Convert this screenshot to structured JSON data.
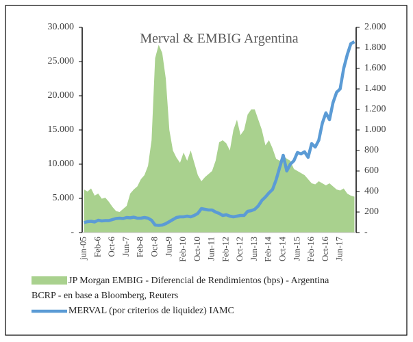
{
  "chart_data": {
    "type": "combo",
    "title": "Merval & EMBIG  Argentina",
    "source": "BCRP - en base a Bloomberg, Reuters",
    "categories": [
      "jun-05",
      null,
      null,
      null,
      "Feb-6",
      null,
      null,
      null,
      "Oct-6",
      null,
      null,
      null,
      "Jun-7",
      null,
      null,
      null,
      "Feb-8",
      null,
      null,
      null,
      "Oct-8",
      null,
      null,
      null,
      "Jun-9",
      null,
      null,
      null,
      "Feb-10",
      null,
      null,
      null,
      "Oct-10",
      null,
      null,
      null,
      "Jun-11",
      null,
      null,
      null,
      "Feb-12",
      null,
      null,
      null,
      "Oct-12",
      null,
      null,
      null,
      "Jun-13",
      null,
      null,
      null,
      "Feb-14",
      null,
      null,
      null,
      "Oct-14",
      null,
      null,
      null,
      "Jun-15",
      null,
      null,
      null,
      "Feb-16",
      null,
      null,
      null,
      "Oct-16",
      null,
      null,
      null,
      "Jun-17",
      null,
      null,
      null,
      null
    ],
    "series": [
      {
        "name": "JP Morgan EMBIG - Diferencial de Rendimientos (bps) - Argentina",
        "type": "area",
        "axis": "y2",
        "color": "#a9d18e",
        "values": [
          420,
          400,
          430,
          360,
          380,
          330,
          340,
          300,
          250,
          210,
          200,
          230,
          260,
          380,
          420,
          450,
          520,
          560,
          650,
          900,
          1700,
          1830,
          1750,
          1500,
          1000,
          800,
          730,
          680,
          780,
          700,
          800,
          680,
          560,
          500,
          540,
          570,
          600,
          700,
          880,
          900,
          870,
          800,
          1000,
          1100,
          950,
          1000,
          1150,
          1200,
          1200,
          1100,
          1000,
          850,
          900,
          820,
          720,
          700,
          750,
          720,
          700,
          620,
          600,
          580,
          560,
          520,
          480,
          470,
          500,
          480,
          460,
          480,
          450,
          420,
          410,
          430,
          380,
          360,
          350
        ]
      },
      {
        "name": "MERVAL (por criterios de liquidez) IAMC",
        "type": "line",
        "axis": "y",
        "color": "#5b9bd5",
        "values": [
          1450,
          1600,
          1650,
          1550,
          1800,
          1700,
          1750,
          1750,
          1900,
          2050,
          2100,
          2050,
          2200,
          2150,
          2250,
          2100,
          2100,
          2200,
          2100,
          1800,
          1100,
          1050,
          1100,
          1300,
          1600,
          1900,
          2200,
          2300,
          2300,
          2400,
          2300,
          2500,
          2800,
          3500,
          3400,
          3300,
          3300,
          3000,
          2800,
          2500,
          2600,
          2400,
          2300,
          2400,
          2500,
          2500,
          3100,
          3200,
          3400,
          3900,
          4700,
          5200,
          5800,
          6300,
          7700,
          9500,
          11300,
          9000,
          10000,
          10500,
          11700,
          11500,
          11800,
          11000,
          13000,
          12500,
          13500,
          16000,
          17500,
          16500,
          19000,
          20500,
          21000,
          24000,
          26000,
          27600,
          27900
        ]
      }
    ],
    "ylim": [
      0,
      30000
    ],
    "yticks": [
      {
        "value": 0,
        "label": "-"
      },
      {
        "value": 5000,
        "label": "5.000"
      },
      {
        "value": 10000,
        "label": "10.000"
      },
      {
        "value": 15000,
        "label": "15.000"
      },
      {
        "value": 20000,
        "label": "20.000"
      },
      {
        "value": 25000,
        "label": "25.000"
      },
      {
        "value": 30000,
        "label": "30.000"
      }
    ],
    "y2lim": [
      0,
      2000
    ],
    "y2ticks": [
      {
        "value": 0,
        "label": "-"
      },
      200,
      400,
      600,
      800,
      {
        "value": 1000,
        "label": "1.000"
      },
      {
        "value": 1200,
        "label": "1.200"
      },
      {
        "value": 1400,
        "label": "1.400"
      },
      {
        "value": 1600,
        "label": "1.600"
      },
      {
        "value": 1800,
        "label": "1.800"
      },
      {
        "value": 2000,
        "label": "2.000"
      }
    ],
    "grid": false
  }
}
